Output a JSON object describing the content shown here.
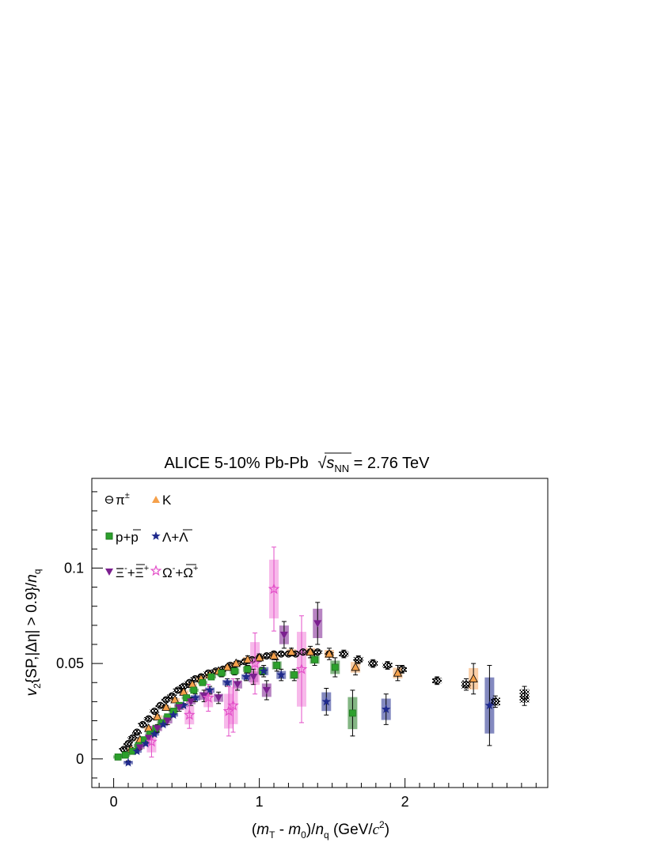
{
  "chart_data": {
    "type": "scatter",
    "title": {
      "prefix": "ALICE 5-10% Pb-Pb",
      "sqrt_var": "s",
      "sqrt_sub": "NN",
      "suffix": " = 2.76 TeV"
    },
    "xlabel": {
      "open": "(",
      "m": "m",
      "T": "T",
      "minus": " - ",
      "m0": "m",
      "zero": "0",
      "slash": ")/",
      "n": "n",
      "q": "q",
      "units_open": " (GeV/",
      "c": "c",
      "two": "2",
      "units_close": ")"
    },
    "ylabel": {
      "v": "v",
      "two": "2",
      "body": "{SP,|Δη| > 0.9}/",
      "n": "n",
      "q": "q"
    },
    "xlim": [
      -0.15,
      2.98
    ],
    "ylim": [
      -0.015,
      0.147
    ],
    "x_ticks": [
      {
        "value": 0,
        "label": "0"
      },
      {
        "value": 1,
        "label": "1"
      },
      {
        "value": 2,
        "label": "2"
      }
    ],
    "y_ticks": [
      {
        "value": 0,
        "label": "0"
      },
      {
        "value": 0.05,
        "label": "0.05"
      },
      {
        "value": 0.1,
        "label": "0.1"
      }
    ],
    "legend_position": "top-left",
    "series": [
      {
        "name": "π±",
        "legend": {
          "main": "π",
          "sup": "±"
        },
        "marker": "open-circle",
        "color": "#000000",
        "sys_color": "#808080",
        "points": [
          [
            0.07,
            0.005,
            0.001
          ],
          [
            0.1,
            0.008,
            0.001
          ],
          [
            0.13,
            0.011,
            0.001
          ],
          [
            0.16,
            0.014,
            0.001
          ],
          [
            0.2,
            0.018,
            0.001
          ],
          [
            0.24,
            0.021,
            0.001
          ],
          [
            0.28,
            0.025,
            0.001
          ],
          [
            0.32,
            0.028,
            0.001
          ],
          [
            0.36,
            0.031,
            0.001
          ],
          [
            0.4,
            0.033,
            0.001
          ],
          [
            0.44,
            0.036,
            0.001
          ],
          [
            0.48,
            0.038,
            0.001
          ],
          [
            0.52,
            0.04,
            0.001
          ],
          [
            0.56,
            0.042,
            0.001
          ],
          [
            0.6,
            0.043,
            0.001
          ],
          [
            0.65,
            0.045,
            0.001
          ],
          [
            0.7,
            0.046,
            0.001
          ],
          [
            0.75,
            0.047,
            0.001
          ],
          [
            0.8,
            0.049,
            0.001
          ],
          [
            0.85,
            0.05,
            0.001
          ],
          [
            0.9,
            0.051,
            0.001
          ],
          [
            0.95,
            0.052,
            0.001
          ],
          [
            1.0,
            0.053,
            0.001
          ],
          [
            1.05,
            0.054,
            0.001
          ],
          [
            1.1,
            0.055,
            0.001
          ],
          [
            1.15,
            0.055,
            0.001
          ],
          [
            1.2,
            0.055,
            0.001
          ],
          [
            1.25,
            0.055,
            0.001
          ],
          [
            1.3,
            0.056,
            0.001
          ],
          [
            1.35,
            0.056,
            0.001
          ],
          [
            1.4,
            0.056,
            0.001
          ],
          [
            1.48,
            0.055,
            0.001
          ],
          [
            1.58,
            0.055,
            0.002
          ],
          [
            1.68,
            0.052,
            0.002
          ],
          [
            1.78,
            0.05,
            0.002
          ],
          [
            1.88,
            0.049,
            0.002
          ],
          [
            1.98,
            0.047,
            0.002
          ],
          [
            2.22,
            0.041,
            0.002
          ],
          [
            2.42,
            0.039,
            0.003
          ],
          [
            2.62,
            0.03,
            0.003
          ],
          [
            2.82,
            0.033,
            0.005
          ]
        ]
      },
      {
        "name": "K",
        "legend": {
          "main": "K",
          "sup": ""
        },
        "marker": "triangle-up",
        "color": "#f5a04a",
        "sys_color": "#f7a860",
        "points": [
          [
            0.12,
            0.005,
            0.001
          ],
          [
            0.18,
            0.01,
            0.001
          ],
          [
            0.24,
            0.016,
            0.001
          ],
          [
            0.3,
            0.022,
            0.001
          ],
          [
            0.36,
            0.027,
            0.001
          ],
          [
            0.42,
            0.031,
            0.001
          ],
          [
            0.48,
            0.035,
            0.001
          ],
          [
            0.54,
            0.039,
            0.001
          ],
          [
            0.6,
            0.042,
            0.001
          ],
          [
            0.66,
            0.044,
            0.001
          ],
          [
            0.72,
            0.046,
            0.001
          ],
          [
            0.78,
            0.048,
            0.001
          ],
          [
            0.84,
            0.05,
            0.001
          ],
          [
            0.92,
            0.052,
            0.002
          ],
          [
            1.0,
            0.053,
            0.002
          ],
          [
            1.1,
            0.054,
            0.002
          ],
          [
            1.22,
            0.056,
            0.002
          ],
          [
            1.35,
            0.056,
            0.003
          ],
          [
            1.48,
            0.055,
            0.003
          ],
          [
            1.66,
            0.048,
            0.004
          ],
          [
            1.95,
            0.045,
            0.004
          ],
          [
            2.47,
            0.042,
            0.008
          ]
        ]
      },
      {
        "name": "p+p̅",
        "legend": {
          "main": "p+",
          "over": "p",
          "sup": ""
        },
        "marker": "square",
        "color": "#2ca02c",
        "sys_color": "#1f7a1f",
        "points": [
          [
            0.03,
            0.001,
            0.001
          ],
          [
            0.08,
            0.002,
            0.001
          ],
          [
            0.13,
            0.004,
            0.001
          ],
          [
            0.17,
            0.007,
            0.001
          ],
          [
            0.21,
            0.01,
            0.001
          ],
          [
            0.25,
            0.013,
            0.001
          ],
          [
            0.29,
            0.016,
            0.001
          ],
          [
            0.33,
            0.019,
            0.001
          ],
          [
            0.37,
            0.022,
            0.001
          ],
          [
            0.41,
            0.025,
            0.001
          ],
          [
            0.45,
            0.028,
            0.001
          ],
          [
            0.5,
            0.032,
            0.001
          ],
          [
            0.55,
            0.036,
            0.001
          ],
          [
            0.61,
            0.04,
            0.001
          ],
          [
            0.67,
            0.043,
            0.001
          ],
          [
            0.74,
            0.045,
            0.002
          ],
          [
            0.83,
            0.046,
            0.002
          ],
          [
            0.92,
            0.047,
            0.002
          ],
          [
            1.02,
            0.046,
            0.002
          ],
          [
            1.12,
            0.049,
            0.003
          ],
          [
            1.24,
            0.044,
            0.003
          ],
          [
            1.38,
            0.052,
            0.003
          ],
          [
            1.52,
            0.048,
            0.005
          ],
          [
            1.64,
            0.024,
            0.012
          ]
        ]
      },
      {
        "name": "Λ+Λ̅",
        "legend": {
          "main": "Λ+",
          "over": "Λ",
          "sup": ""
        },
        "marker": "star",
        "color": "#1f2a8c",
        "sys_color": "#1f2a8c",
        "points": [
          [
            0.1,
            -0.002,
            0.001
          ],
          [
            0.16,
            0.004,
            0.001
          ],
          [
            0.22,
            0.008,
            0.001
          ],
          [
            0.28,
            0.013,
            0.001
          ],
          [
            0.34,
            0.018,
            0.001
          ],
          [
            0.41,
            0.023,
            0.001
          ],
          [
            0.48,
            0.028,
            0.001
          ],
          [
            0.56,
            0.032,
            0.002
          ],
          [
            0.66,
            0.036,
            0.002
          ],
          [
            0.78,
            0.04,
            0.002
          ],
          [
            0.91,
            0.043,
            0.002
          ],
          [
            1.03,
            0.046,
            0.003
          ],
          [
            1.15,
            0.044,
            0.003
          ],
          [
            1.46,
            0.03,
            0.007
          ],
          [
            1.87,
            0.026,
            0.008
          ],
          [
            2.58,
            0.028,
            0.021
          ]
        ]
      },
      {
        "name": "Ξ-+Ξ̅+",
        "legend": {
          "main": "Ξ",
          "sup": "-",
          "plus": "+",
          "over": "Ξ",
          "sup2": "+"
        },
        "marker": "triangle-down",
        "color": "#7b1f8f",
        "sys_color": "#7b1f8f",
        "points": [
          [
            0.18,
            0.006,
            0.001
          ],
          [
            0.24,
            0.011,
            0.001
          ],
          [
            0.3,
            0.016,
            0.002
          ],
          [
            0.37,
            0.02,
            0.002
          ],
          [
            0.45,
            0.027,
            0.002
          ],
          [
            0.53,
            0.03,
            0.002
          ],
          [
            0.62,
            0.033,
            0.003
          ],
          [
            0.72,
            0.032,
            0.003
          ],
          [
            0.85,
            0.039,
            0.003
          ],
          [
            0.96,
            0.043,
            0.004
          ],
          [
            1.05,
            0.036,
            0.005
          ],
          [
            1.17,
            0.065,
            0.007
          ],
          [
            1.4,
            0.071,
            0.011
          ]
        ]
      },
      {
        "name": "Ω-+Ω̅+",
        "legend": {
          "main": "Ω",
          "sup": "-",
          "plus": "+",
          "over": "Ω",
          "sup2": "+"
        },
        "marker": "open-star",
        "color": "#e34fc8",
        "sys_color": "#f07fd8",
        "points": [
          [
            0.26,
            0.009,
            0.008
          ],
          [
            0.52,
            0.023,
            0.007
          ],
          [
            0.65,
            0.032,
            0.007
          ],
          [
            0.79,
            0.025,
            0.013
          ],
          [
            0.82,
            0.028,
            0.014
          ],
          [
            0.97,
            0.05,
            0.016
          ],
          [
            1.1,
            0.089,
            0.022
          ],
          [
            1.29,
            0.047,
            0.028
          ]
        ]
      }
    ],
    "x_extend": 2.6
  }
}
